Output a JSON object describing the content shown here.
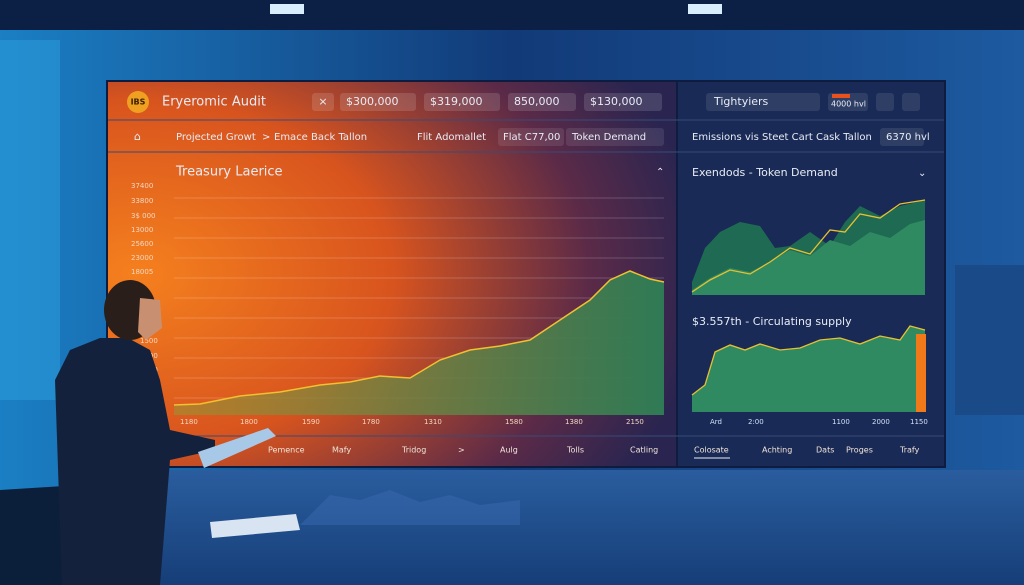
{
  "top_bar": {
    "logo": "IBS",
    "title": "Eryeromic Audit",
    "close": "×",
    "filters": [
      "$300,000",
      "$319,000",
      "850,000",
      "$130,000"
    ],
    "right_select": "Tightyiers",
    "right_badge": "4000 hvl"
  },
  "sub_bar": {
    "left": [
      "Projected Growt",
      ">",
      "Emace Back Tallon",
      "Flit Adomallet",
      "Flat C77,00",
      "Token Demand"
    ],
    "right": [
      "Emissions vis Steet Cart  Cask Tallon",
      "6370 hvl"
    ]
  },
  "main_chart": {
    "title": "Treasury Laerice",
    "y_labels": [
      "37400",
      "33800",
      "3$ 000",
      "13000",
      "25600",
      "23000",
      "18005",
      "1500",
      "1300",
      "2100",
      "1000"
    ],
    "x_labels": [
      "1180",
      "1800",
      "1590",
      "1780",
      "1310",
      "1580",
      "1380",
      "2150"
    ],
    "tabs": [
      "Pemence",
      "Mafy",
      "Tridog",
      ">",
      "Aulg",
      "Tolls",
      "Catling"
    ]
  },
  "side_charts": [
    {
      "title": "Exendods - Token Demand"
    },
    {
      "title": "$3.557th - Circulating supply",
      "x_labels": [
        "Ard",
        "2:00",
        "1100",
        "2000",
        "1150"
      ]
    }
  ],
  "side_tabs": [
    "Colosate",
    "Achting",
    "Dats",
    "Proges",
    "Trafy"
  ]
}
